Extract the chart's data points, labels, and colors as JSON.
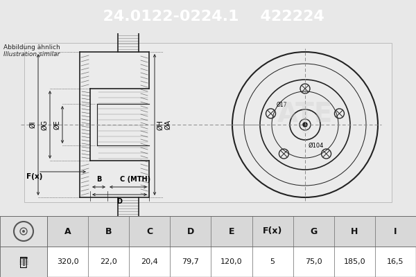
{
  "title_part": "24.0122-0224.1",
  "title_code": "422224",
  "header_bg": "#0055a5",
  "header_text_color": "#ffffff",
  "bg_color": "#e8e8e8",
  "diagram_bg": "#f0f0f0",
  "table_bg": "#ffffff",
  "table_header_bg": "#d0d0d0",
  "note_text": [
    "Abbildung ähnlich",
    "Illustration similar"
  ],
  "columns": [
    "A",
    "B",
    "C",
    "D",
    "E",
    "F(x)",
    "G",
    "H",
    "I"
  ],
  "values": [
    "320,0",
    "22,0",
    "20,4",
    "79,7",
    "120,0",
    "5",
    "75,0",
    "185,0",
    "16,5"
  ],
  "dim_labels_side": [
    "ØI",
    "ØG",
    "ØE",
    "ØH",
    "ØA",
    "F(x)",
    "B",
    "C (MTH)",
    "D"
  ],
  "dim_labels_front": [
    "Ø17",
    "Ø104"
  ]
}
